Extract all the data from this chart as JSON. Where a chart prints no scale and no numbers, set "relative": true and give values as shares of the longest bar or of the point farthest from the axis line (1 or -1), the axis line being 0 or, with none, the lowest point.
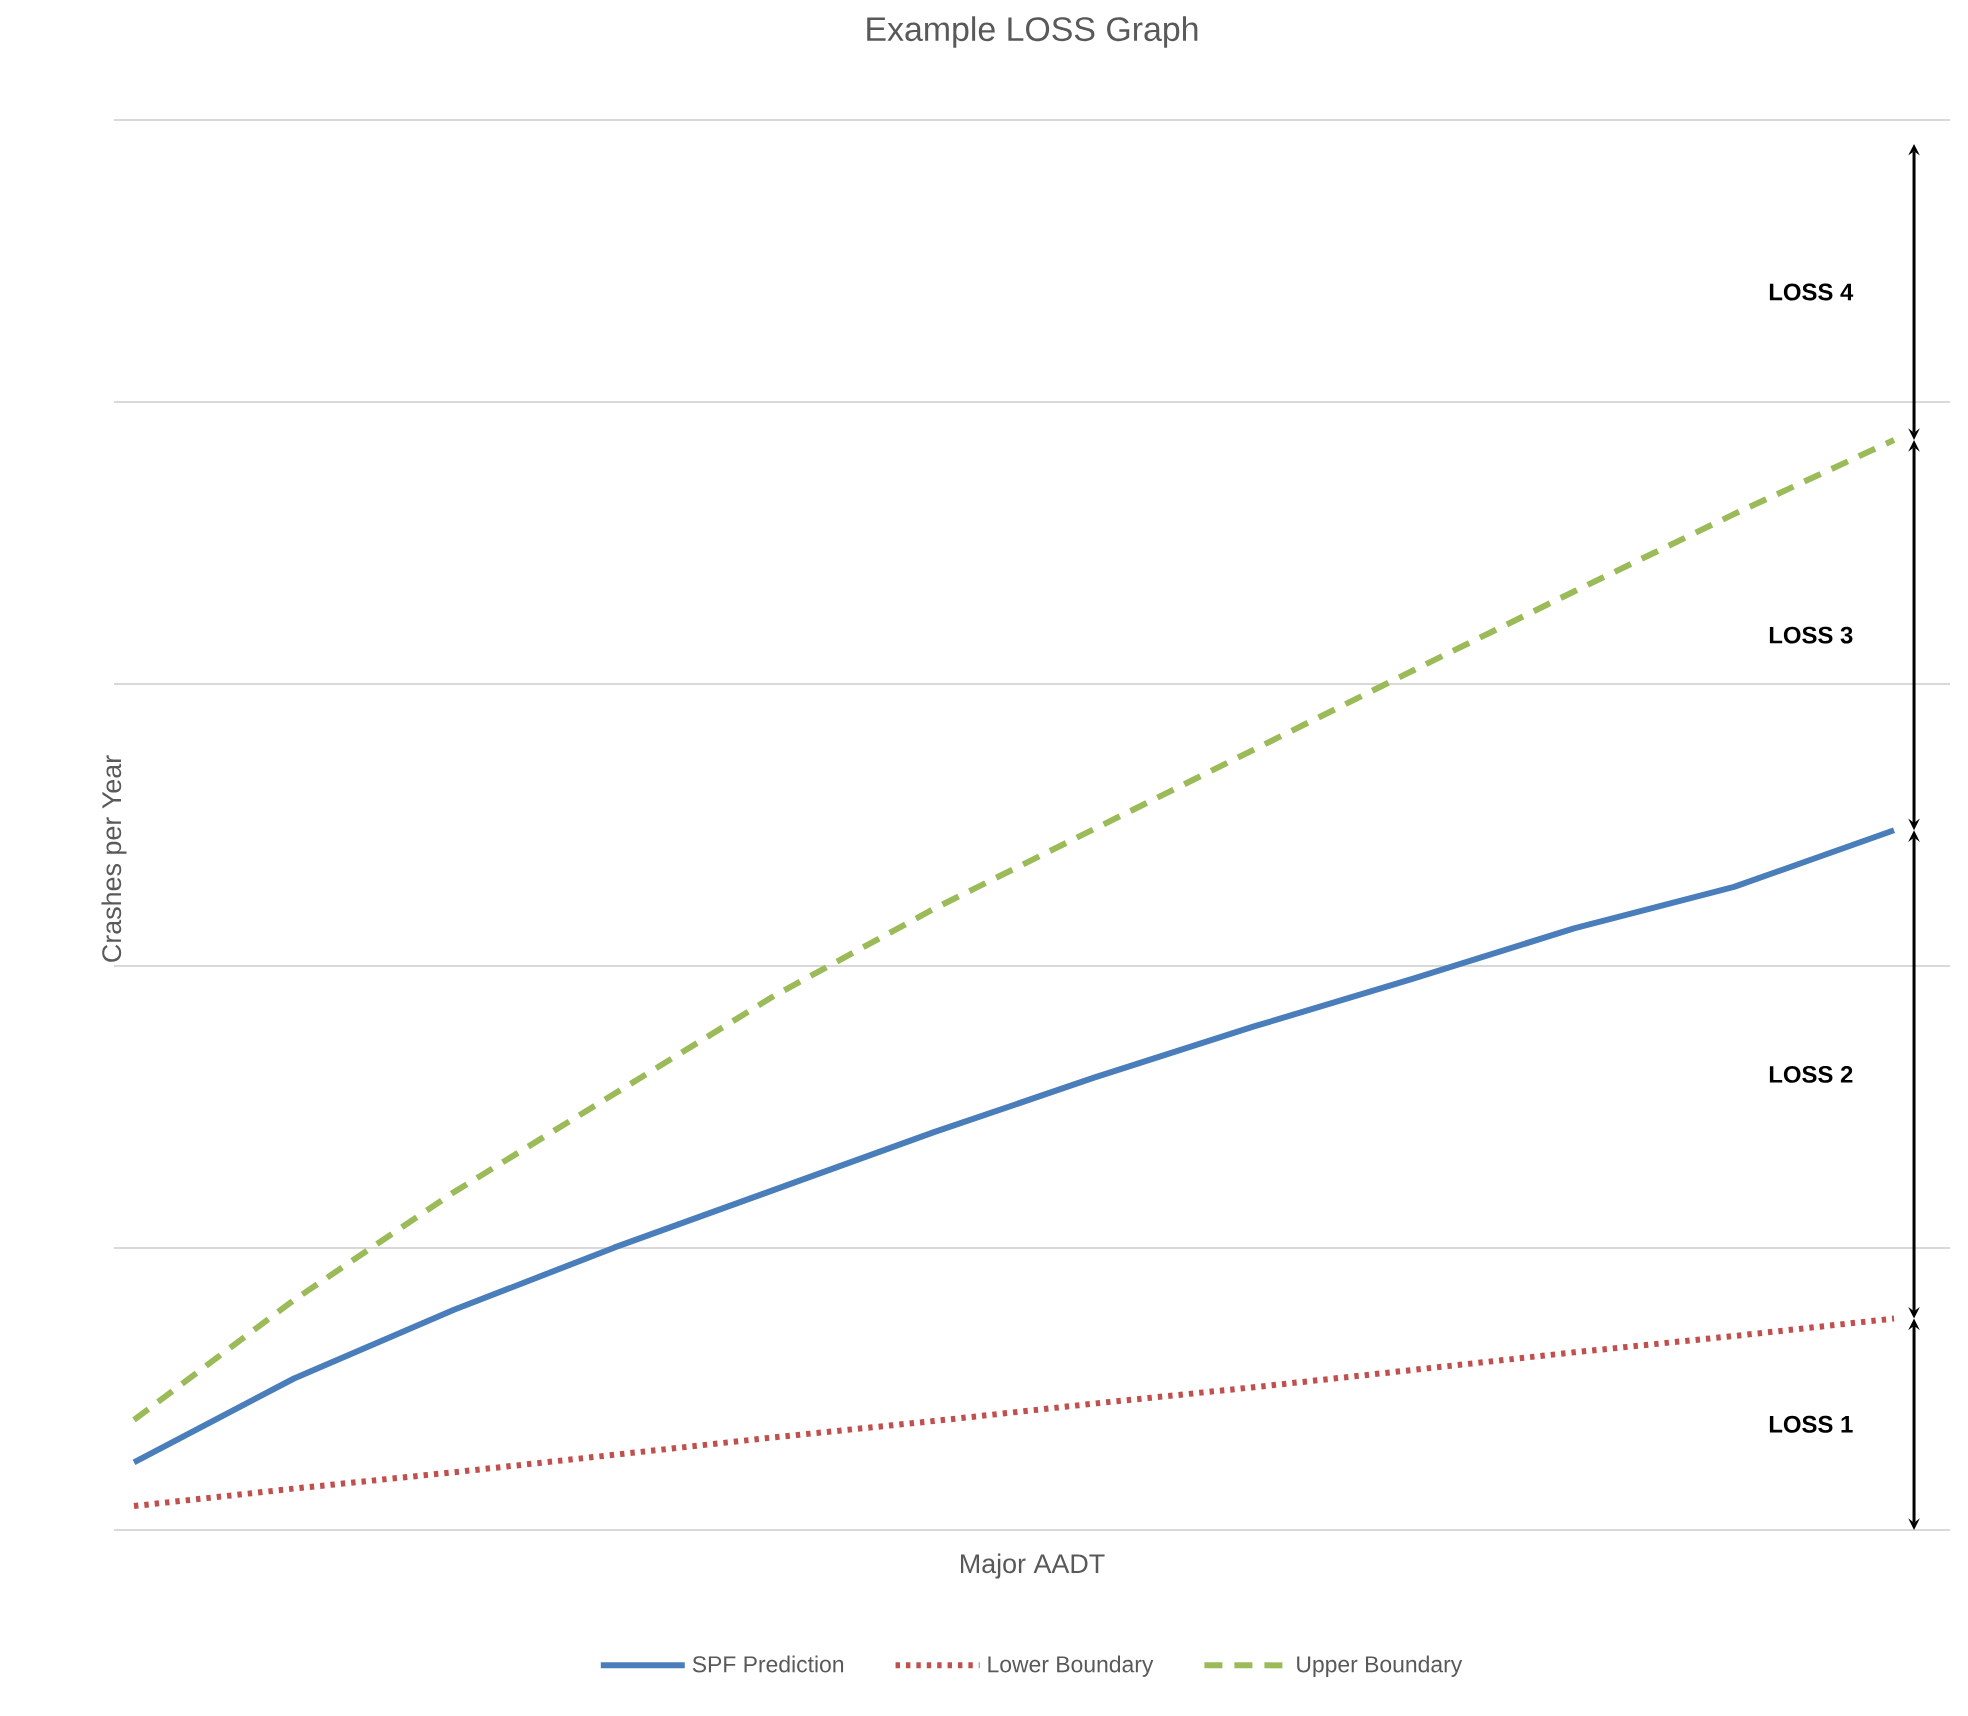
{
  "chart_data": {
    "type": "line",
    "title": "Example LOSS Graph",
    "xlabel": "Major AADT",
    "ylabel": "Crashes per Year",
    "relative": true,
    "grid": "y",
    "legend": "bottom",
    "categories": [
      null,
      null,
      null,
      null,
      null,
      null,
      null,
      null,
      null,
      null,
      null,
      null
    ],
    "series": [
      {
        "name": "SPF Prediction",
        "color": "#4a7ebb",
        "line_style": "solid",
        "values": [
          0.062,
          0.139,
          0.202,
          0.259,
          0.312,
          0.365,
          0.415,
          0.462,
          0.506,
          0.552,
          0.59,
          0.642
        ]
      },
      {
        "name": "Lower Boundary",
        "color": "#c0504d",
        "line_style": "dotted",
        "values": [
          0.022,
          0.038,
          0.053,
          0.069,
          0.085,
          0.1,
          0.116,
          0.131,
          0.147,
          0.163,
          0.178,
          0.194
        ]
      },
      {
        "name": "Upper Boundary",
        "color": "#9bbb59",
        "line_style": "dashed",
        "values": [
          0.101,
          0.211,
          0.31,
          0.4,
          0.49,
          0.57,
          0.643,
          0.716,
          0.789,
          0.861,
          0.932,
          1.0
        ]
      }
    ],
    "annotations": [
      "LOSS 1",
      "LOSS 2",
      "LOSS 3",
      "LOSS 4"
    ]
  }
}
